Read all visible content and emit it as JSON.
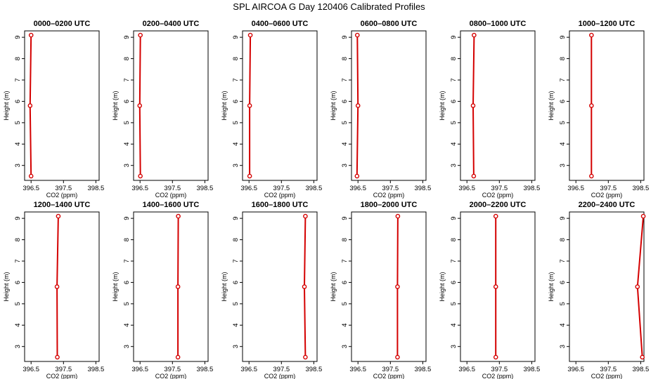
{
  "chart_data": {
    "type": "line",
    "title": "SPL AIRCOA G  Day 120406  Calibrated Profiles",
    "xlabel": "CO2 (ppm)",
    "ylabel": "Height (m)",
    "xlim": [
      396.3,
      398.6
    ],
    "ylim": [
      2.3,
      9.3
    ],
    "xticks": [
      396.5,
      397.5,
      398.5
    ],
    "yticks": [
      3,
      4,
      5,
      6,
      7,
      8,
      9
    ],
    "heights": [
      2.5,
      5.8,
      9.1
    ],
    "panels": [
      {
        "title": "0000–0200 UTC",
        "co2": [
          396.5,
          396.47,
          396.5
        ]
      },
      {
        "title": "0200–0400 UTC",
        "co2": [
          396.51,
          396.49,
          396.51
        ]
      },
      {
        "title": "0400–0600 UTC",
        "co2": [
          396.52,
          396.52,
          396.54
        ]
      },
      {
        "title": "0600–0800 UTC",
        "co2": [
          396.47,
          396.5,
          396.48
        ]
      },
      {
        "title": "0800–1000 UTC",
        "co2": [
          396.71,
          396.69,
          396.72
        ]
      },
      {
        "title": "1000–1200 UTC",
        "co2": [
          396.98,
          396.98,
          396.98
        ]
      },
      {
        "title": "1200–1400 UTC",
        "co2": [
          397.31,
          397.3,
          397.34
        ]
      },
      {
        "title": "1400–1600 UTC",
        "co2": [
          397.67,
          397.67,
          397.68
        ]
      },
      {
        "title": "1600–1800 UTC",
        "co2": [
          398.24,
          398.21,
          398.24
        ]
      },
      {
        "title": "1800–2000 UTC",
        "co2": [
          397.72,
          397.72,
          397.73
        ]
      },
      {
        "title": "2000–2200 UTC",
        "co2": [
          397.39,
          397.39,
          397.39
        ]
      },
      {
        "title": "2200–2400 UTC",
        "co2": [
          398.55,
          398.4,
          398.58
        ]
      }
    ]
  }
}
